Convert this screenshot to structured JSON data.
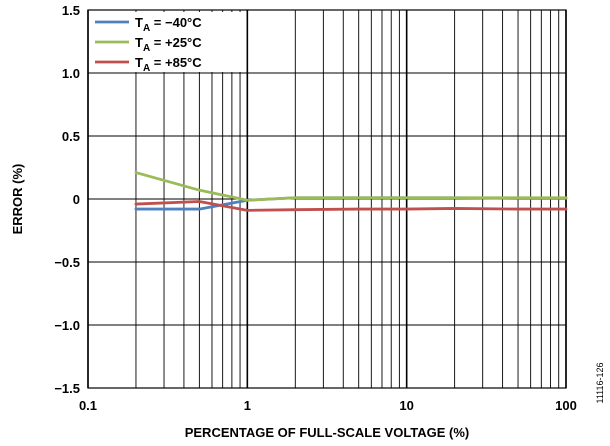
{
  "chart_data": {
    "type": "line",
    "xlabel": "PERCENTAGE OF FULL-SCALE VOLTAGE (%)",
    "ylabel": "ERROR (%)",
    "x_scale": "log",
    "xlim": [
      0.1,
      100
    ],
    "ylim": [
      -1.5,
      1.5
    ],
    "x_ticks": [
      0.1,
      1,
      10,
      100
    ],
    "x_tick_labels": [
      "0.1",
      "1",
      "10",
      "100"
    ],
    "y_ticks": [
      -1.5,
      -1.0,
      -0.5,
      0,
      0.5,
      1.0,
      1.5
    ],
    "y_tick_labels": [
      "−1.5",
      "−1.0",
      "−0.5",
      "0",
      "0.5",
      "1.0",
      "1.5"
    ],
    "grid": true,
    "legend_position": "top-left",
    "series": [
      {
        "name": "T",
        "name_sub": "A",
        "name_rest": " = −40°C",
        "color": "#4f81bd",
        "x": [
          0.2,
          0.5,
          1,
          2,
          5,
          10,
          20,
          50,
          100
        ],
        "y": [
          -0.08,
          -0.08,
          -0.01,
          0.01,
          0.01,
          0.01,
          0.01,
          0.005,
          0.005
        ]
      },
      {
        "name": "T",
        "name_sub": "A",
        "name_rest": " = +25°C",
        "color": "#9bbb59",
        "x": [
          0.2,
          0.5,
          1,
          2,
          5,
          10,
          20,
          50,
          100
        ],
        "y": [
          0.21,
          0.07,
          -0.01,
          0.01,
          0.01,
          0.01,
          0.01,
          0.01,
          0.01
        ]
      },
      {
        "name": "T",
        "name_sub": "A",
        "name_rest": " = +85°C",
        "color": "#c0504d",
        "x": [
          0.2,
          0.5,
          1,
          2,
          5,
          10,
          20,
          50,
          100
        ],
        "y": [
          -0.04,
          -0.02,
          -0.09,
          -0.085,
          -0.08,
          -0.08,
          -0.075,
          -0.08,
          -0.08
        ]
      }
    ]
  },
  "figure_id": "11116-126"
}
